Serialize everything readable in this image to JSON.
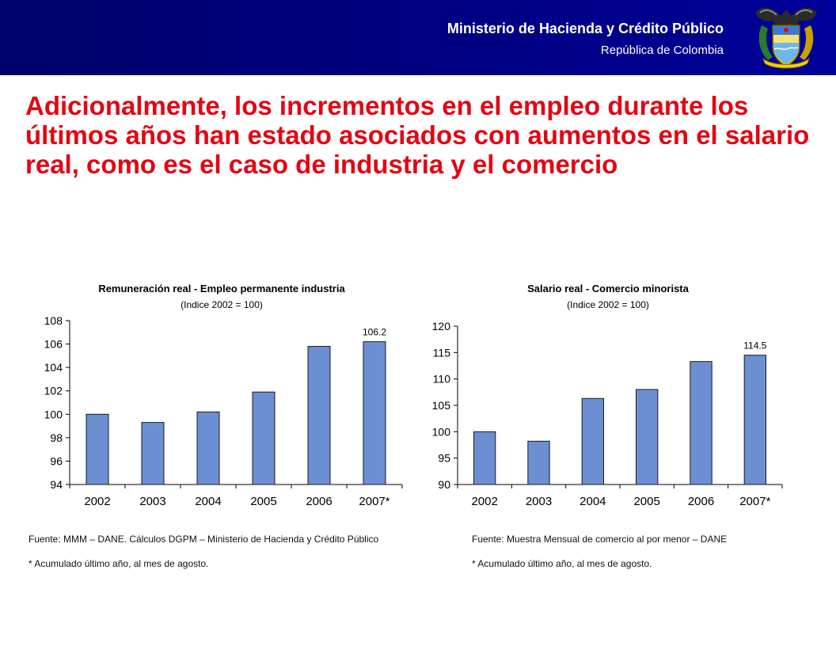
{
  "header": {
    "ministry": "Ministerio de Hacienda y Crédito Público",
    "republic": "República de Colombia",
    "crest_icon": "colombia-coat-of-arms-icon",
    "background_color": "#00008a"
  },
  "slide": {
    "title": "Adicionalmente, los incrementos en el empleo durante los últimos años han estado asociados con aumentos en el salario real, como es el caso de industria y el comercio",
    "title_color": "#e30613"
  },
  "chart_data": [
    {
      "type": "bar",
      "title": "Remuneración real - Empleo permanente industria",
      "subtitle": "(Indice 2002 = 100)",
      "categories": [
        "2002",
        "2003",
        "2004",
        "2005",
        "2006",
        "2007*"
      ],
      "values": [
        100.0,
        99.3,
        100.2,
        101.9,
        105.8,
        106.2
      ],
      "ylim": [
        94,
        108
      ],
      "yticks": [
        94,
        96,
        98,
        100,
        102,
        104,
        106,
        108
      ],
      "data_labels": [
        {
          "index": 5,
          "text": "106.2"
        }
      ],
      "bar_color": "#6c8fd4",
      "grid": false
    },
    {
      "type": "bar",
      "title": "Salario real - Comercio minorista",
      "subtitle": "(Indice 2002 = 100)",
      "categories": [
        "2002",
        "2003",
        "2004",
        "2005",
        "2006",
        "2007*"
      ],
      "values": [
        100.0,
        98.2,
        106.3,
        108.0,
        113.3,
        114.5
      ],
      "ylim": [
        90,
        120
      ],
      "yticks": [
        90,
        95,
        100,
        105,
        110,
        115,
        120
      ],
      "data_labels": [
        {
          "index": 5,
          "text": "114.5"
        }
      ],
      "bar_color": "#6c8fd4",
      "grid": false
    }
  ],
  "notes": {
    "left_source": "Fuente: MMM – DANE. Cálculos DGPM – Ministerio de Hacienda y Crédito Público",
    "left_footnote": "* Acumulado último año, al mes de agosto.",
    "right_source": "Fuente: Muestra Mensual de comercio al por menor – DANE",
    "right_footnote": "* Acumulado último año, al mes de agosto."
  }
}
